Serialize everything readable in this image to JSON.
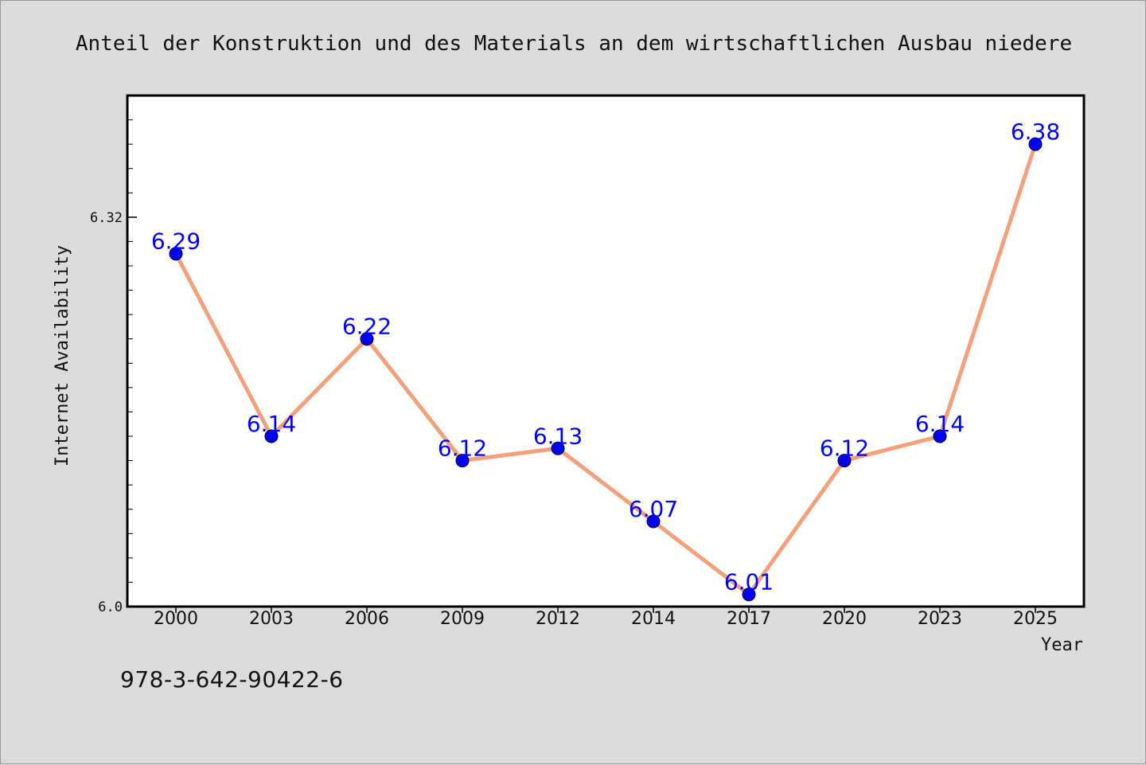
{
  "footer_code": "978-3-642-90422-6",
  "chart_data": {
    "type": "line",
    "title": "Anteil der Konstruktion und des Materials an dem wirtschaftlichen Ausbau niedere",
    "xlabel": "Year",
    "ylabel": "Internet Availability",
    "categories": [
      "2000",
      "2003",
      "2006",
      "2009",
      "2012",
      "2014",
      "2017",
      "2020",
      "2023",
      "2025"
    ],
    "series": [
      {
        "values": [
          6.29,
          6.14,
          6.22,
          6.12,
          6.13,
          6.07,
          6.01,
          6.12,
          6.14,
          6.38
        ]
      }
    ],
    "data_labels": [
      "6.29",
      "6.14",
      "6.22",
      "6.12",
      "6.13",
      "6.07",
      "6.01",
      "6.12",
      "6.14",
      "6.38"
    ],
    "ylim": [
      6.0,
      6.42
    ],
    "yticks": [
      6.0,
      6.32
    ],
    "ytick_labels": [
      "6.0",
      "6.32"
    ],
    "grid": false,
    "colors": {
      "line": "#f4a07a",
      "marker": "#0000ff",
      "label": "#0000ff",
      "background": "#dcdcdc",
      "plot_bg": "#ffffff"
    }
  }
}
